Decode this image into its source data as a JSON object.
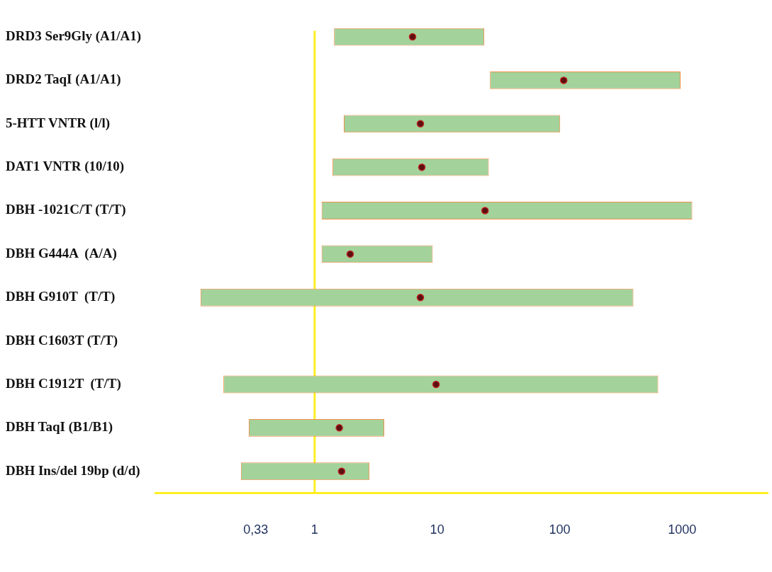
{
  "chart_data": {
    "type": "bar",
    "orientation": "horizontal",
    "log": "x",
    "legend": false,
    "grid": false,
    "categories": [
      "DRD3 Ser9Gly (A1/A1)",
      "DRD2 TaqI (A1/A1)",
      "5-HTT VNTR (l/l)",
      "DAT1 VNTR (10/10)",
      "DBH -1021C/T (T/T)",
      "DBH G444A  (A/A)",
      "DBH G910T  (T/T)",
      "DBH C1603T (T/T)",
      "DBH C1912T  (T/T)",
      "DBH TaqI (B1/B1)",
      "DBH Ins/del 19bp (d/d)"
    ],
    "xlim": [
      0.05,
      5000
    ],
    "xticks": [
      {
        "value": 0.33,
        "label": "0,33"
      },
      1,
      10,
      100,
      1000
    ],
    "ref_lines": [
      {
        "axis": "x",
        "value": 1,
        "color": "#ffee22"
      }
    ],
    "series": [
      {
        "color": "#a3d29b",
        "base": [
          1.44,
          27,
          1.73,
          1.4,
          1.14,
          1.14,
          0.117,
          null,
          0.18,
          0.29,
          0.25
        ],
        "values": [
          22.8,
          944,
          99.3,
          25,
          1209,
          8.06,
          400,
          null,
          638,
          3.41,
          2.55
        ]
      },
      {
        "type": "scatter",
        "color": "#5a1010",
        "x": [
          "DRD3 Ser9Gly (A1/A1)",
          "DRD2 TaqI (A1/A1)",
          "5-HTT VNTR (l/l)",
          "DAT1 VNTR (10/10)",
          "DBH -1021C/T (T/T)",
          "DBH G444A  (A/A)",
          "DBH G910T  (T/T)",
          "DBH C1603T (T/T)",
          "DBH C1912T  (T/T)",
          "DBH TaqI (B1/B1)",
          "DBH Ins/del 19bp (d/d)"
        ],
        "values": [
          6.3,
          108,
          7.3,
          7.5,
          24.6,
          1.95,
          7.3,
          null,
          9.8,
          1.59,
          1.66
        ]
      }
    ]
  }
}
